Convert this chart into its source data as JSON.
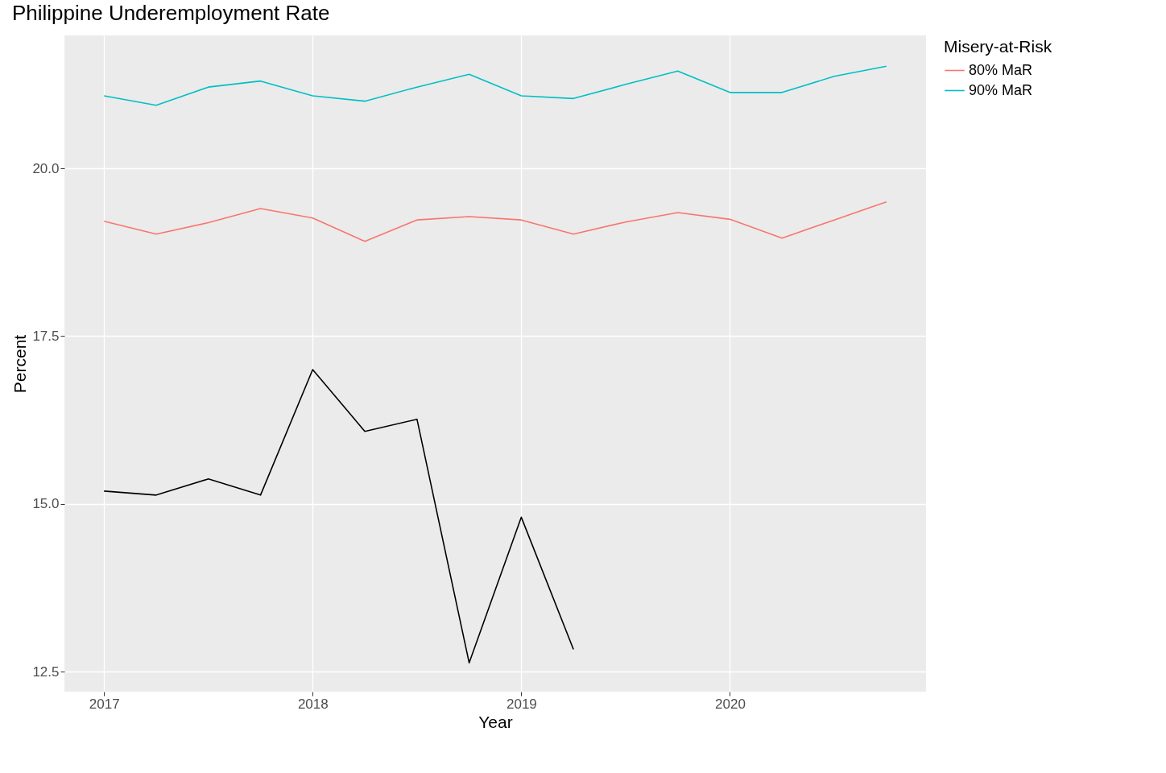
{
  "chart_data": {
    "type": "line",
    "title": "Philippine Underemployment Rate",
    "xlabel": "Year",
    "ylabel": "Percent",
    "legend_title": "Misery-at-Risk",
    "x": [
      2017,
      2017.25,
      2017.5,
      2017.75,
      2018,
      2018.25,
      2018.5,
      2018.75,
      2019,
      2019.25,
      2019.5,
      2019.75,
      2020,
      2020.25,
      2020.5,
      2020.75
    ],
    "series": [
      {
        "color": "#000000",
        "values": [
          15.19,
          15.13,
          15.37,
          15.13,
          17.0,
          16.08,
          16.26,
          12.63,
          14.8,
          12.83,
          null,
          null,
          null,
          null,
          null,
          null
        ]
      },
      {
        "name": "80% MaR",
        "color": "#f8766d",
        "values": [
          19.21,
          19.02,
          19.19,
          19.4,
          19.26,
          18.91,
          19.23,
          19.28,
          19.23,
          19.02,
          19.2,
          19.34,
          19.24,
          18.96,
          19.23,
          19.5
        ]
      },
      {
        "name": "90% MaR",
        "color": "#00bfc4",
        "values": [
          21.08,
          20.94,
          21.21,
          21.3,
          21.08,
          21.0,
          21.21,
          21.4,
          21.08,
          21.04,
          21.25,
          21.45,
          21.13,
          21.13,
          21.37,
          21.52
        ]
      }
    ],
    "xlim": [
      2016.81,
      2020.94
    ],
    "xticks": [
      2017,
      2018,
      2019,
      2020
    ],
    "ylim": [
      12.2,
      21.98
    ],
    "yticks": [
      {
        "value": 12.5,
        "label": "12.5"
      },
      {
        "value": 15,
        "label": "15.0"
      },
      {
        "value": 17.5,
        "label": "17.5"
      },
      {
        "value": 20,
        "label": "20.0"
      }
    ],
    "grid": true,
    "legend": "right",
    "line_style": "solid",
    "marker": "none"
  }
}
